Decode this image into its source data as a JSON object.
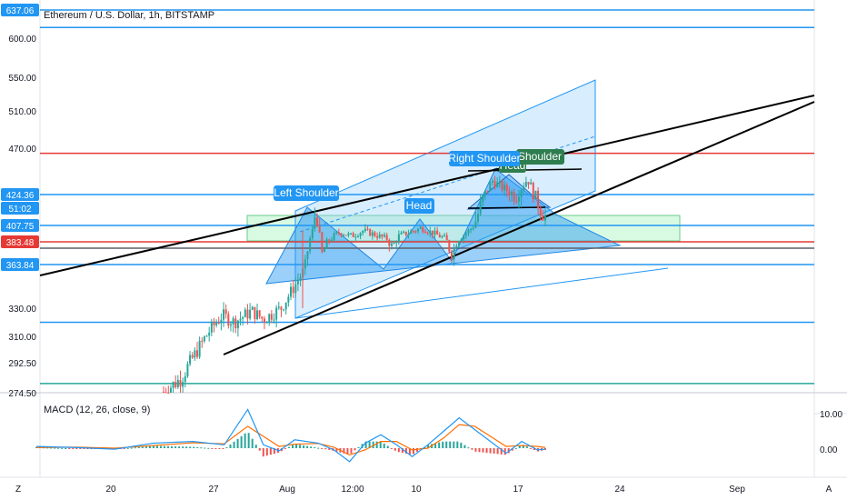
{
  "header": {
    "title": "Ethereum / U.S. Dollar, 1h, BITSTAMP"
  },
  "macd": {
    "label": "MACD (12, 26, close, 9)",
    "ticks": [
      "10.00",
      "0.00"
    ]
  },
  "price_tags": [
    {
      "text": "637.06",
      "color": "#2196f3"
    },
    {
      "text": "424.36",
      "color": "#2196f3"
    },
    {
      "text": "51:02",
      "color": "#2196f3"
    },
    {
      "text": "407.75",
      "color": "#2196f3"
    },
    {
      "text": "383.48",
      "color": "#e53935"
    },
    {
      "text": "363.84",
      "color": "#2196f3"
    }
  ],
  "pattern_labels": [
    {
      "text": "Left Shoulder",
      "color": "#2196f3"
    },
    {
      "text": "Head",
      "color": "#2196f3"
    },
    {
      "text": "Right Shoulder",
      "color": "#2196f3"
    },
    {
      "text": "Head",
      "color": "#2e7d4f"
    },
    {
      "text": "Shoulder",
      "color": "#2e7d4f"
    }
  ],
  "bottom_bar": {
    "left_button": "Z",
    "right_button": "A"
  },
  "chart_data": {
    "type": "candlestick",
    "title": "Ethereum / U.S. Dollar, 1h, BITSTAMP",
    "y_ticks": [
      "600.00",
      "550.00",
      "510.00",
      "470.00",
      "330.00",
      "310.00",
      "292.50",
      "274.50"
    ],
    "x_ticks": [
      "20",
      "27",
      "Aug",
      "12:00",
      "10",
      "17",
      "24",
      "Sep"
    ],
    "price_path": [
      [
        0,
        275
      ],
      [
        3,
        283
      ],
      [
        5,
        296
      ],
      [
        8,
        315
      ],
      [
        10,
        325
      ],
      [
        12,
        320
      ],
      [
        15,
        328
      ],
      [
        17,
        322
      ],
      [
        20,
        330
      ],
      [
        22,
        345
      ],
      [
        24,
        360
      ],
      [
        26,
        420
      ],
      [
        27,
        372
      ],
      [
        28,
        385
      ],
      [
        30,
        398
      ],
      [
        32,
        392
      ],
      [
        34,
        400
      ],
      [
        36,
        394
      ],
      [
        38,
        388
      ],
      [
        39,
        378
      ],
      [
        40,
        392
      ],
      [
        42,
        398
      ],
      [
        44,
        404
      ],
      [
        46,
        396
      ],
      [
        48,
        388
      ],
      [
        49,
        372
      ],
      [
        50,
        386
      ],
      [
        52,
        400
      ],
      [
        54,
        418
      ],
      [
        56,
        438
      ],
      [
        58,
        430
      ],
      [
        60,
        424
      ],
      [
        62,
        440
      ],
      [
        63,
        426
      ],
      [
        64,
        418
      ],
      [
        65,
        412
      ]
    ],
    "horizontal_levels": [
      {
        "price": 637.06,
        "color": "#2196f3"
      },
      {
        "price": 614.0,
        "color": "#2196f3"
      },
      {
        "price": 465.0,
        "color": "#e53935"
      },
      {
        "price": 424.36,
        "color": "#2196f3"
      },
      {
        "price": 407.75,
        "color": "#2196f3"
      },
      {
        "price": 383.48,
        "color": "#e53935"
      },
      {
        "price": 378.0,
        "color": "#5d606b"
      },
      {
        "price": 363.84,
        "color": "#2196f3"
      },
      {
        "price": 320.0,
        "color": "#2196f3"
      },
      {
        "price": 280.0,
        "color": "#26a69a"
      }
    ],
    "macd_points": [
      [
        0,
        0.5
      ],
      [
        5,
        0.2
      ],
      [
        10,
        -0.3
      ],
      [
        15,
        1.5
      ],
      [
        20,
        2.0
      ],
      [
        24,
        1.0
      ],
      [
        27,
        11.5
      ],
      [
        29,
        1.0
      ],
      [
        31,
        -0.8
      ],
      [
        33,
        2.5
      ],
      [
        36,
        1.5
      ],
      [
        38,
        -0.5
      ],
      [
        40,
        -4.0
      ],
      [
        42,
        1.5
      ],
      [
        44,
        4.0
      ],
      [
        46,
        1.0
      ],
      [
        48,
        -2.5
      ],
      [
        50,
        1.0
      ],
      [
        52,
        5.0
      ],
      [
        54,
        9.0
      ],
      [
        56,
        5.5
      ],
      [
        58,
        2.0
      ],
      [
        60,
        -1.5
      ],
      [
        62,
        2.0
      ],
      [
        64,
        -0.5
      ],
      [
        65,
        -0.3
      ]
    ],
    "signal_points": [
      [
        0,
        0.2
      ],
      [
        5,
        0.3
      ],
      [
        10,
        0.0
      ],
      [
        15,
        0.8
      ],
      [
        20,
        1.6
      ],
      [
        24,
        1.3
      ],
      [
        27,
        6.5
      ],
      [
        29,
        3.5
      ],
      [
        31,
        0.5
      ],
      [
        33,
        1.2
      ],
      [
        36,
        1.4
      ],
      [
        38,
        0.3
      ],
      [
        40,
        -2.0
      ],
      [
        42,
        -0.5
      ],
      [
        44,
        2.0
      ],
      [
        46,
        2.0
      ],
      [
        48,
        -0.5
      ],
      [
        50,
        0.0
      ],
      [
        52,
        3.0
      ],
      [
        54,
        7.0
      ],
      [
        56,
        6.5
      ],
      [
        58,
        3.5
      ],
      [
        60,
        0.5
      ],
      [
        62,
        0.8
      ],
      [
        64,
        0.5
      ],
      [
        65,
        0.2
      ]
    ],
    "grid": false,
    "legend": "top-left",
    "colors": {
      "up": "#26a69a",
      "down": "#ef5350",
      "macd_line": "#2196f3",
      "signal_line": "#ff6d00"
    }
  }
}
